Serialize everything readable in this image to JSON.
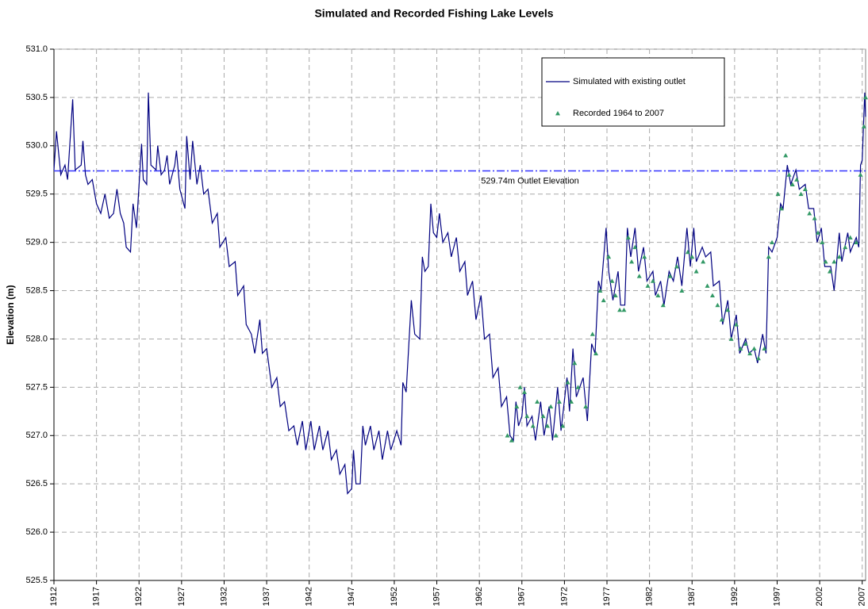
{
  "chart_data": {
    "type": "line",
    "title": "Simulated and Recorded Fishing Lake Levels",
    "y_label": "Elevation (m)",
    "xlim": [
      1912,
      2007.4
    ],
    "xticks": [
      1912,
      1917,
      1922,
      1927,
      1932,
      1937,
      1942,
      1947,
      1952,
      1957,
      1962,
      1967,
      1972,
      1977,
      1982,
      1987,
      1992,
      1997,
      2002,
      2007
    ],
    "ylim": [
      525.5,
      531.0
    ],
    "yticks": [
      {
        "value": 525.5,
        "label": "525.5"
      },
      {
        "value": 526.0,
        "label": "526.0"
      },
      526.5,
      {
        "value": 527.0,
        "label": "527.0"
      },
      527.5,
      {
        "value": 528.0,
        "label": "528.0"
      },
      528.5,
      {
        "value": 529.0,
        "label": "529.0"
      },
      529.5,
      {
        "value": 530.0,
        "label": "530.0"
      },
      530.5,
      {
        "value": 531.0,
        "label": "531.0"
      }
    ],
    "grid": true,
    "legend": "upper right",
    "reference_line": {
      "value": 529.74,
      "label": "529.74m Outlet Elevation",
      "color": "#3333ff"
    },
    "series": [
      {
        "name": "Simulated with existing outlet",
        "color": "#000080",
        "type": "line",
        "x": [
          1912,
          1912.3,
          1912.8,
          1913.3,
          1913.6,
          1914.2,
          1914.5,
          1915.2,
          1915.4,
          1915.7,
          1916,
          1916.5,
          1917,
          1917.5,
          1918,
          1918.5,
          1919,
          1919.4,
          1919.8,
          1920.2,
          1920.5,
          1921,
          1921.3,
          1921.7,
          1922.3,
          1922.5,
          1922.9,
          1923.1,
          1923.4,
          1924.0,
          1924.2,
          1924.6,
          1925.0,
          1925.3,
          1925.6,
          1926.2,
          1926.4,
          1926.8,
          1927.4,
          1927.6,
          1928.0,
          1928.3,
          1928.8,
          1929.2,
          1929.6,
          1930.1,
          1930.6,
          1931.2,
          1931.5,
          1932.2,
          1932.6,
          1933.3,
          1933.6,
          1934.3,
          1934.6,
          1935.2,
          1935.6,
          1936.2,
          1936.5,
          1937.0,
          1937.6,
          1938.2,
          1938.6,
          1939.1,
          1939.6,
          1940.2,
          1940.6,
          1941.2,
          1941.6,
          1942.2,
          1942.6,
          1943.2,
          1943.6,
          1944.2,
          1944.6,
          1945.2,
          1945.6,
          1946.2,
          1946.5,
          1947.0,
          1947.2,
          1947.5,
          1948.0,
          1948.3,
          1948.6,
          1949.2,
          1949.6,
          1950.2,
          1950.6,
          1951.2,
          1951.6,
          1952.3,
          1952.8,
          1953.0,
          1953.4,
          1954.0,
          1954.4,
          1955.0,
          1955.3,
          1955.6,
          1956.0,
          1956.3,
          1956.6,
          1957.0,
          1957.3,
          1957.7,
          1958.3,
          1958.7,
          1959.3,
          1959.7,
          1960.3,
          1960.6,
          1961.2,
          1961.6,
          1962.2,
          1962.6,
          1963.2,
          1963.6,
          1964.2,
          1964.6,
          1965.2,
          1965.6,
          1966.0,
          1966.3,
          1966.6,
          1967.0,
          1967.3,
          1967.6,
          1968.2,
          1968.6,
          1969.2,
          1969.6,
          1970.2,
          1970.6,
          1971.2,
          1971.6,
          1972.3,
          1972.6,
          1973.0,
          1973.4,
          1974.2,
          1974.7,
          1975.2,
          1975.6,
          1976.0,
          1976.3,
          1976.9,
          1977.2,
          1977.7,
          1978.3,
          1978.6,
          1979.1,
          1979.4,
          1979.8,
          1980.3,
          1980.7,
          1981.3,
          1981.7,
          1982.4,
          1982.7,
          1983.3,
          1983.7,
          1984.3,
          1984.8,
          1985.3,
          1985.8,
          1986.4,
          1986.8,
          1987.2,
          1987.5,
          1988.2,
          1988.6,
          1989.2,
          1989.5,
          1990.2,
          1990.6,
          1991.2,
          1991.6,
          1992.2,
          1992.6,
          1993.3,
          1993.7,
          1994.3,
          1994.7,
          1995.3,
          1995.7,
          1996.0,
          1996.4,
          1997.0,
          1997.4,
          1997.7,
          1998.2,
          1998.6,
          1999.2,
          1999.6,
          2000.3,
          2000.7,
          2001.3,
          2001.7,
          2002.2,
          2002.6,
          2003.3,
          2003.7,
          2004.3,
          2004.6,
          2005.3,
          2005.6,
          2006.3,
          2006.6,
          2006.8,
          2007.0,
          2007.3,
          2007.4
        ],
        "values": [
          529.75,
          530.15,
          529.7,
          529.8,
          529.65,
          530.48,
          529.75,
          529.8,
          530.05,
          529.7,
          529.6,
          529.65,
          529.4,
          529.3,
          529.5,
          529.25,
          529.3,
          529.55,
          529.3,
          529.2,
          528.95,
          528.9,
          529.4,
          529.15,
          530.02,
          529.65,
          529.6,
          530.55,
          529.8,
          529.75,
          530.0,
          529.7,
          529.75,
          529.9,
          529.6,
          529.8,
          529.95,
          529.55,
          529.35,
          530.1,
          529.65,
          530.05,
          529.6,
          529.8,
          529.5,
          529.55,
          529.2,
          529.3,
          528.95,
          529.05,
          528.75,
          528.8,
          528.45,
          528.55,
          528.15,
          528.05,
          527.85,
          528.2,
          527.85,
          527.9,
          527.5,
          527.6,
          527.3,
          527.35,
          527.05,
          527.1,
          526.9,
          527.15,
          526.85,
          527.15,
          526.85,
          527.1,
          526.85,
          527.05,
          526.75,
          526.85,
          526.6,
          526.7,
          526.4,
          526.45,
          526.85,
          526.5,
          526.5,
          527.1,
          526.9,
          527.1,
          526.85,
          527.05,
          526.75,
          527.05,
          526.85,
          527.05,
          526.9,
          527.55,
          527.45,
          528.4,
          528.05,
          528.0,
          528.85,
          528.7,
          528.75,
          529.4,
          529.1,
          529.05,
          529.3,
          529.0,
          529.1,
          528.85,
          529.05,
          528.7,
          528.8,
          528.45,
          528.6,
          528.2,
          528.45,
          528.0,
          528.05,
          527.6,
          527.7,
          527.3,
          527.4,
          527.0,
          526.95,
          527.35,
          527.1,
          527.2,
          527.5,
          527.1,
          527.2,
          526.95,
          527.35,
          527.0,
          527.3,
          526.95,
          527.5,
          527.05,
          527.6,
          527.25,
          527.9,
          527.4,
          527.6,
          527.15,
          527.95,
          527.85,
          528.6,
          528.5,
          529.15,
          528.7,
          528.4,
          528.7,
          528.35,
          528.35,
          529.15,
          528.85,
          529.15,
          528.7,
          528.95,
          528.6,
          528.7,
          528.45,
          528.6,
          528.35,
          528.7,
          528.6,
          528.85,
          528.55,
          529.15,
          528.75,
          529.15,
          528.8,
          528.95,
          528.85,
          528.9,
          528.55,
          528.6,
          528.15,
          528.4,
          528.0,
          528.25,
          527.85,
          528.0,
          527.85,
          527.9,
          527.75,
          528.05,
          527.85,
          528.95,
          528.9,
          529.05,
          529.4,
          529.35,
          529.8,
          529.6,
          529.75,
          529.55,
          529.6,
          529.35,
          529.35,
          529.0,
          529.15,
          528.75,
          528.75,
          528.5,
          529.1,
          528.8,
          529.1,
          528.9,
          529.05,
          528.95,
          529.8,
          529.85,
          530.55,
          530.3
        ]
      },
      {
        "name": "Recorded 1964 to 2007",
        "color": "#339966",
        "type": "scatter",
        "marker": "triangle",
        "x": [
          1965.3,
          1965.8,
          1966.4,
          1966.8,
          1967.3,
          1967.6,
          1968.3,
          1968.8,
          1969.5,
          1970.0,
          1970.4,
          1971.0,
          1971.4,
          1971.8,
          1972.4,
          1972.8,
          1973.2,
          1973.6,
          1974.5,
          1975.3,
          1975.7,
          1976.2,
          1976.6,
          1977.2,
          1977.6,
          1978.0,
          1978.5,
          1979.0,
          1979.5,
          1979.9,
          1980.3,
          1980.8,
          1981.4,
          1981.8,
          1982.4,
          1983.0,
          1983.6,
          1984.4,
          1985.2,
          1985.8,
          1986.5,
          1987.0,
          1987.5,
          1988.3,
          1988.8,
          1989.4,
          1990.0,
          1990.5,
          1991.2,
          1991.6,
          1992.2,
          1992.7,
          1993.3,
          1993.8,
          1994.3,
          1994.8,
          1995.5,
          1996.0,
          1996.4,
          1997.1,
          1997.5,
          1998.0,
          1998.4,
          1998.8,
          1999.3,
          1999.8,
          2000.3,
          2000.8,
          2001.4,
          2001.8,
          2002.3,
          2002.7,
          2003.2,
          2003.7,
          2004.3,
          2005.0,
          2005.6,
          2006.3,
          2006.8,
          2007.2,
          2007.4
        ],
        "values": [
          527.0,
          526.95,
          527.3,
          527.5,
          527.45,
          527.2,
          527.1,
          527.35,
          527.2,
          527.1,
          527.3,
          527.0,
          527.35,
          527.1,
          527.55,
          527.35,
          527.75,
          527.5,
          527.3,
          528.05,
          527.85,
          528.5,
          528.4,
          528.85,
          528.6,
          528.45,
          528.3,
          528.3,
          529.05,
          528.8,
          528.95,
          528.65,
          528.85,
          528.55,
          528.6,
          528.45,
          528.35,
          528.65,
          528.75,
          528.5,
          528.9,
          528.85,
          528.7,
          528.8,
          528.55,
          528.45,
          528.35,
          528.2,
          528.3,
          528.0,
          528.15,
          527.9,
          527.95,
          527.85,
          527.9,
          527.8,
          527.9,
          528.85,
          529.0,
          529.5,
          529.35,
          529.9,
          529.7,
          529.6,
          529.65,
          529.5,
          529.55,
          529.3,
          529.25,
          529.1,
          529.0,
          528.8,
          528.7,
          528.8,
          528.85,
          528.95,
          529.05,
          529.0,
          529.7,
          530.2,
          530.5
        ]
      }
    ]
  }
}
